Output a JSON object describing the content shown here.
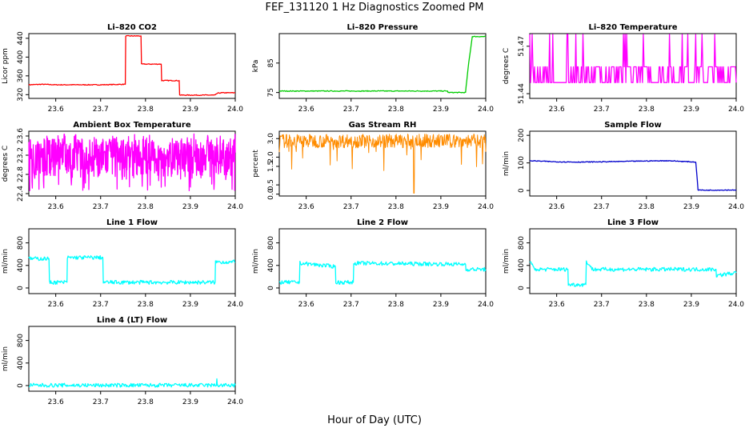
{
  "figure": {
    "title": "FEF_131120  1 Hz Diagnostics Zoomed PM",
    "xlabel": "Hour of Day (UTC)"
  },
  "chart_data": [
    {
      "type": "line",
      "title": "Li–820 CO2",
      "ylabel": "Licor ppm",
      "color": "#ff0000",
      "xlim": [
        23.54,
        24.0
      ],
      "ylim": [
        312,
        450
      ],
      "xticks": [
        "23.6",
        "23.7",
        "23.8",
        "23.9",
        "24.0"
      ],
      "yticks": [
        "320",
        "360",
        "400",
        "440"
      ],
      "x": [
        23.54,
        23.57,
        23.6,
        23.65,
        23.7,
        23.755,
        23.756,
        23.79,
        23.791,
        23.835,
        23.836,
        23.875,
        23.876,
        23.955,
        23.96,
        23.97,
        24.0
      ],
      "y": [
        341,
        342,
        341,
        341,
        341,
        342,
        445,
        445,
        385,
        385,
        350,
        350,
        319,
        319,
        323,
        324,
        324
      ]
    },
    {
      "type": "line",
      "title": "Li–820 Pressure",
      "ylabel": "kPa",
      "color": "#00cc00",
      "xlim": [
        23.54,
        24.0
      ],
      "ylim": [
        73,
        95
      ],
      "xticks": [
        "23.6",
        "23.7",
        "23.8",
        "23.9",
        "24.0"
      ],
      "yticks": [
        "75",
        "85"
      ],
      "x": [
        23.54,
        23.6,
        23.7,
        23.8,
        23.915,
        23.916,
        23.955,
        23.962,
        23.97,
        24.0
      ],
      "y": [
        75.5,
        75.5,
        75.5,
        75.5,
        75.5,
        75,
        75,
        85,
        94,
        94
      ]
    },
    {
      "type": "line",
      "title": "Li–820 Temperature",
      "ylabel": "degrees C",
      "color": "#ff00ff",
      "xlim": [
        23.54,
        24.0
      ],
      "ylim": [
        51.437,
        51.478
      ],
      "xticks": [
        "23.6",
        "23.7",
        "23.8",
        "23.9",
        "24.0"
      ],
      "yticks": [
        "51.44",
        "51.47"
      ],
      "x": [
        23.54,
        24.0
      ],
      "y": [
        51.45,
        51.45
      ]
    },
    {
      "type": "line",
      "title": "Ambient Box Temperature",
      "ylabel": "degrees C",
      "color": "#ff00ff",
      "xlim": [
        23.54,
        24.0
      ],
      "ylim": [
        22.35,
        23.7
      ],
      "xticks": [
        "23.6",
        "23.7",
        "23.8",
        "23.9",
        "24.0"
      ],
      "yticks": [
        "22.4",
        "22.8",
        "23.2",
        "23.6"
      ],
      "x": [
        23.54,
        24.0
      ],
      "y": [
        23.1,
        23.1
      ]
    },
    {
      "type": "line",
      "title": "Gas Stream RH",
      "ylabel": "percent",
      "color": "#ff8c00",
      "xlim": [
        23.54,
        24.0
      ],
      "ylim": [
        -0.1,
        3.4
      ],
      "xticks": [
        "23.6",
        "23.7",
        "23.8",
        "23.9",
        "24.0"
      ],
      "yticks": [
        "0.0",
        "0.5",
        "1.5",
        "2.0",
        "3.0"
      ],
      "x": [
        23.54,
        24.0
      ],
      "y": [
        2.9,
        2.9
      ]
    },
    {
      "type": "line",
      "title": "Sample Flow",
      "ylabel": "ml/min",
      "color": "#0000cc",
      "xlim": [
        23.54,
        24.0
      ],
      "ylim": [
        -20,
        215
      ],
      "xticks": [
        "23.6",
        "23.7",
        "23.8",
        "23.9",
        "24.0"
      ],
      "yticks": [
        "0",
        "100",
        "200"
      ],
      "x": [
        23.54,
        23.6,
        23.65,
        23.7,
        23.8,
        23.85,
        23.91,
        23.915,
        23.93,
        24.0
      ],
      "y": [
        108,
        104,
        103,
        104,
        107,
        108,
        103,
        2,
        1,
        2
      ]
    },
    {
      "type": "line",
      "title": "Line 1 Flow",
      "ylabel": "ml/min",
      "color": "#00ffff",
      "xlim": [
        23.54,
        24.0
      ],
      "ylim": [
        -100,
        1050
      ],
      "xticks": [
        "23.6",
        "23.7",
        "23.8",
        "23.9",
        "24.0"
      ],
      "yticks": [
        "0",
        "400",
        "800"
      ],
      "x": [
        23.54,
        23.585,
        23.586,
        23.625,
        23.626,
        23.705,
        23.706,
        23.955,
        23.956,
        24.0
      ],
      "y": [
        520,
        520,
        100,
        100,
        540,
        540,
        100,
        100,
        460,
        460
      ]
    },
    {
      "type": "line",
      "title": "Line 2 Flow",
      "ylabel": "ml/min",
      "color": "#00ffff",
      "xlim": [
        23.54,
        24.0
      ],
      "ylim": [
        -100,
        1050
      ],
      "xticks": [
        "23.6",
        "23.7",
        "23.8",
        "23.9",
        "24.0"
      ],
      "yticks": [
        "0",
        "400",
        "800"
      ],
      "x": [
        23.54,
        23.585,
        23.586,
        23.665,
        23.666,
        23.705,
        23.706,
        23.955,
        23.956,
        24.0
      ],
      "y": [
        100,
        100,
        440,
        380,
        100,
        100,
        440,
        420,
        330,
        330
      ]
    },
    {
      "type": "line",
      "title": "Line 3 Flow",
      "ylabel": "ml/min",
      "color": "#00ffff",
      "xlim": [
        23.54,
        24.0
      ],
      "ylim": [
        -100,
        1050
      ],
      "xticks": [
        "23.6",
        "23.7",
        "23.8",
        "23.9",
        "24.0"
      ],
      "yticks": [
        "0",
        "400",
        "800"
      ],
      "x": [
        23.54,
        23.55,
        23.625,
        23.626,
        23.665,
        23.666,
        23.68,
        23.955,
        23.956,
        24.0
      ],
      "y": [
        480,
        330,
        330,
        60,
        60,
        480,
        330,
        330,
        220,
        270
      ]
    },
    {
      "type": "line",
      "title": "Line 4 (LT) Flow",
      "ylabel": "ml/min",
      "color": "#00ffff",
      "xlim": [
        23.54,
        24.0
      ],
      "ylim": [
        -100,
        1050
      ],
      "xticks": [
        "23.6",
        "23.7",
        "23.8",
        "23.9",
        "24.0"
      ],
      "yticks": [
        "0",
        "400",
        "800"
      ],
      "x": [
        23.54,
        23.958,
        23.959,
        23.96,
        23.961,
        24.0
      ],
      "y": [
        5,
        5,
        120,
        5,
        5,
        5
      ]
    }
  ]
}
